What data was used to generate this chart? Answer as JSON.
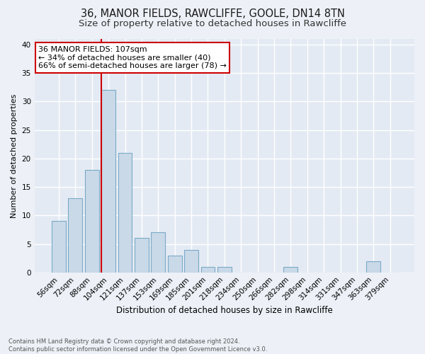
{
  "title": "36, MANOR FIELDS, RAWCLIFFE, GOOLE, DN14 8TN",
  "subtitle": "Size of property relative to detached houses in Rawcliffe",
  "xlabel": "Distribution of detached houses by size in Rawcliffe",
  "ylabel": "Number of detached properties",
  "categories": [
    "56sqm",
    "72sqm",
    "88sqm",
    "104sqm",
    "121sqm",
    "137sqm",
    "153sqm",
    "169sqm",
    "185sqm",
    "201sqm",
    "218sqm",
    "234sqm",
    "250sqm",
    "266sqm",
    "282sqm",
    "298sqm",
    "314sqm",
    "331sqm",
    "347sqm",
    "363sqm",
    "379sqm"
  ],
  "values": [
    9,
    13,
    18,
    32,
    21,
    6,
    7,
    3,
    4,
    1,
    1,
    0,
    0,
    0,
    1,
    0,
    0,
    0,
    0,
    2,
    0
  ],
  "bar_color": "#c9d9e8",
  "bar_edgecolor": "#7aaac8",
  "vline_x_index": 3,
  "vline_color": "#cc0000",
  "annotation_text": "36 MANOR FIELDS: 107sqm\n← 34% of detached houses are smaller (40)\n66% of semi-detached houses are larger (78) →",
  "annotation_box_color": "#ffffff",
  "annotation_box_edgecolor": "#cc0000",
  "ylim": [
    0,
    41
  ],
  "yticks": [
    0,
    5,
    10,
    15,
    20,
    25,
    30,
    35,
    40
  ],
  "footer": "Contains HM Land Registry data © Crown copyright and database right 2024.\nContains public sector information licensed under the Open Government Licence v3.0.",
  "background_color": "#edf1f7",
  "plot_background_color": "#e4eaf3",
  "grid_color": "#ffffff",
  "title_fontsize": 10.5,
  "subtitle_fontsize": 9.5,
  "ylabel_fontsize": 8,
  "xlabel_fontsize": 8.5,
  "tick_fontsize": 7.5,
  "annotation_fontsize": 8,
  "footer_fontsize": 6
}
